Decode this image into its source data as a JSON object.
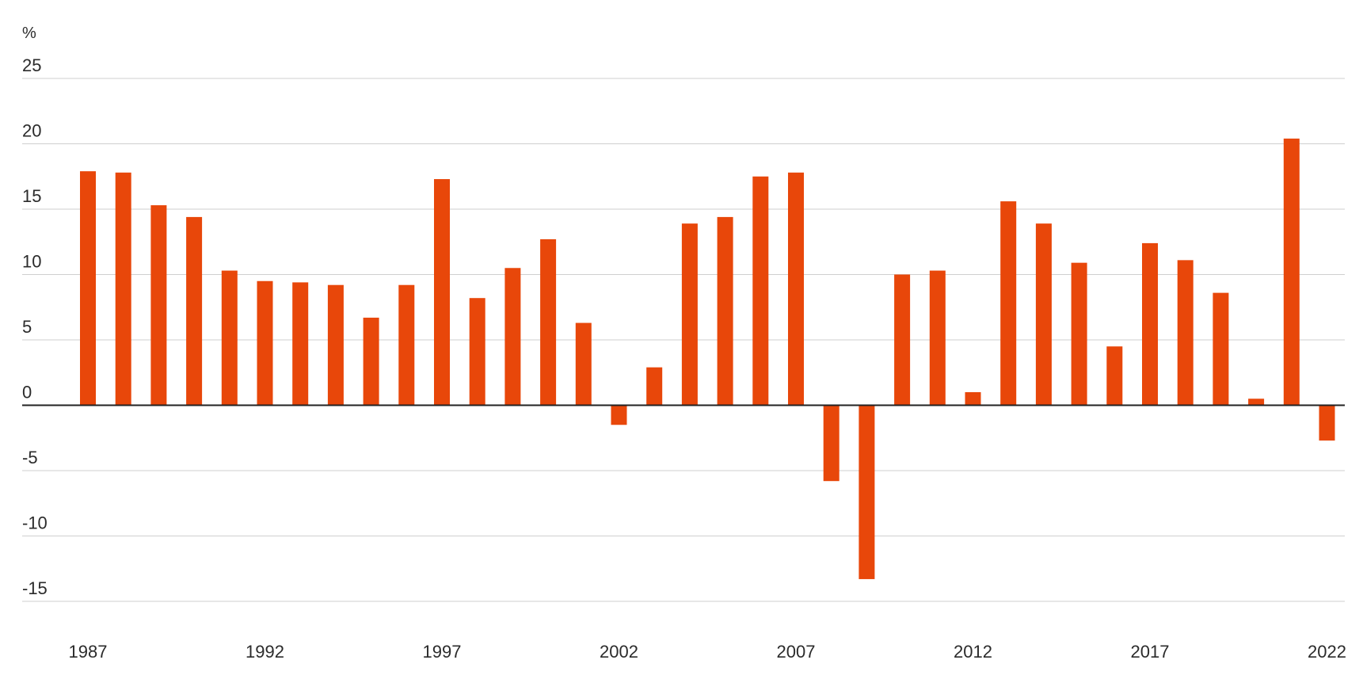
{
  "colors": {
    "bar": "#e8470a",
    "grid": "#cfcfcf",
    "zero_line": "#222222",
    "text": "#2b2b2b"
  },
  "chart_data": {
    "type": "bar",
    "title": "",
    "xlabel": "",
    "ylabel": "%",
    "ylim": [
      -15,
      25
    ],
    "y_ticks": [
      25,
      20,
      15,
      10,
      5,
      0,
      -5,
      -10,
      -15
    ],
    "x_ticks": [
      1987,
      1992,
      1997,
      2002,
      2007,
      2012,
      2017,
      2022
    ],
    "grid": true,
    "legend": "none",
    "categories": [
      1987,
      1988,
      1989,
      1990,
      1991,
      1992,
      1993,
      1994,
      1995,
      1996,
      1997,
      1998,
      1999,
      2000,
      2001,
      2002,
      2003,
      2004,
      2005,
      2006,
      2007,
      2008,
      2009,
      2010,
      2011,
      2012,
      2013,
      2014,
      2015,
      2016,
      2017,
      2018,
      2019,
      2020,
      2021,
      2022
    ],
    "values": [
      17.9,
      17.8,
      15.3,
      14.4,
      10.3,
      9.5,
      9.4,
      9.2,
      6.7,
      9.2,
      17.3,
      8.2,
      10.5,
      12.7,
      6.3,
      -1.5,
      2.9,
      13.9,
      14.4,
      17.5,
      17.8,
      -5.8,
      -13.3,
      10.0,
      10.3,
      1.0,
      15.6,
      13.9,
      10.9,
      4.5,
      12.4,
      11.1,
      8.6,
      0.5,
      20.4,
      -2.7
    ]
  }
}
